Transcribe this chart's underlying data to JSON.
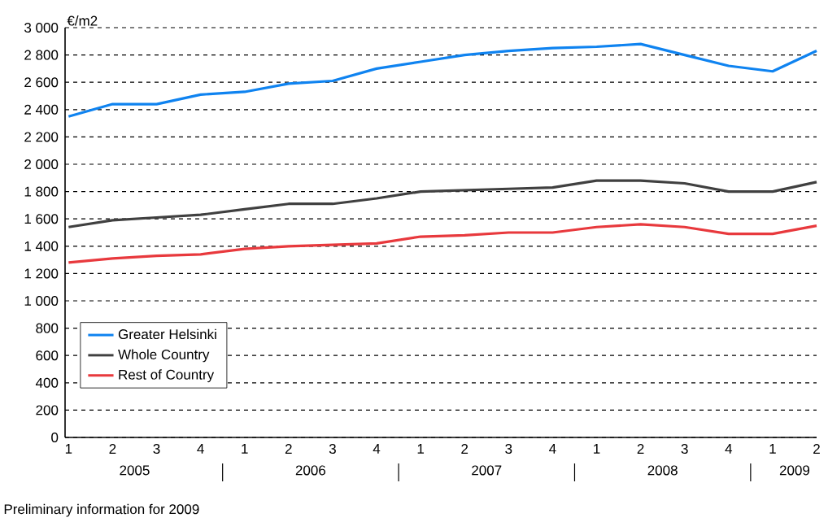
{
  "chart_data": {
    "type": "line",
    "ylabel": "€/m2",
    "categories": [
      "1",
      "2",
      "3",
      "4",
      "1",
      "2",
      "3",
      "4",
      "1",
      "2",
      "3",
      "4",
      "1",
      "2",
      "3",
      "4",
      "1",
      "2"
    ],
    "series": [
      {
        "name": "Greater Helsinki",
        "color": "#0f83f0",
        "values": [
          2350,
          2440,
          2440,
          2510,
          2530,
          2590,
          2610,
          2700,
          2750,
          2800,
          2830,
          2850,
          2860,
          2880,
          2800,
          2720,
          2680,
          2830
        ]
      },
      {
        "name": "Whole Country",
        "color": "#404040",
        "values": [
          1540,
          1590,
          1610,
          1630,
          1670,
          1710,
          1710,
          1750,
          1800,
          1810,
          1820,
          1830,
          1880,
          1880,
          1860,
          1800,
          1800,
          1870
        ]
      },
      {
        "name": "Rest of Country",
        "color": "#e8393d",
        "values": [
          1280,
          1310,
          1330,
          1340,
          1380,
          1400,
          1410,
          1420,
          1470,
          1480,
          1500,
          1500,
          1540,
          1560,
          1540,
          1490,
          1490,
          1550
        ]
      }
    ],
    "ylim": [
      0,
      3000
    ],
    "yticks": [
      0,
      200,
      400,
      600,
      800,
      {
        "value": 1000,
        "label": "1 000"
      },
      {
        "value": 1200,
        "label": "1 200"
      },
      {
        "value": 1400,
        "label": "1 400"
      },
      {
        "value": 1600,
        "label": "1 600"
      },
      {
        "value": 1800,
        "label": "1 800"
      },
      {
        "value": 2000,
        "label": "2 000"
      },
      {
        "value": 2200,
        "label": "2 200"
      },
      {
        "value": 2400,
        "label": "2 400"
      },
      {
        "value": 2600,
        "label": "2 600"
      },
      {
        "value": 2800,
        "label": "2 800"
      },
      {
        "value": 3000,
        "label": "3 000"
      }
    ],
    "grid": "y",
    "legend": "bottom left",
    "marker": "none",
    "line_style": "solid",
    "annotations": [
      "2005",
      "2006",
      "2007",
      "2008",
      "2009",
      "Preliminary information for 2009"
    ]
  }
}
